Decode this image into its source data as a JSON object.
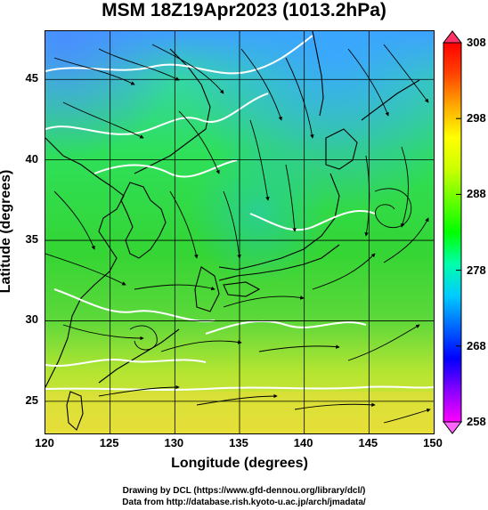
{
  "title": "MSM 18Z19Apr2023 (1013.2hPa)",
  "map": {
    "lon_range": [
      120,
      150
    ],
    "lat_range": [
      23,
      48
    ],
    "lon_ticks": [
      "120",
      "125",
      "130",
      "135",
      "140",
      "145",
      "150"
    ],
    "lat_ticks": [
      "25",
      "30",
      "35",
      "40",
      "45"
    ],
    "xlabel": "Longitude (degrees)",
    "ylabel": "Latitude  (degrees)",
    "contour_color": "#ffffff",
    "streamline_color": "#000000",
    "coastline_color": "#000000"
  },
  "colorbar": {
    "min": 258,
    "max": 308,
    "labels": [
      "308",
      "298",
      "288",
      "278",
      "268",
      "258"
    ],
    "top_arrow_color": "#ff3366",
    "bottom_arrow_color": "#ff66ff",
    "colors": [
      "#ff00ff",
      "#8800ff",
      "#0000ff",
      "#0066ff",
      "#00ccff",
      "#00ffaa",
      "#00ff00",
      "#66ff00",
      "#ccff00",
      "#ffff00",
      "#ffaa00",
      "#ff4400",
      "#ff0000"
    ]
  },
  "footer": {
    "line1": "Drawing by DCL (https://www.gfd-dennou.org/library/dcl/)",
    "line2": "Data from http://database.rish.kyoto-u.ac.jp/arch/jmadata/"
  }
}
